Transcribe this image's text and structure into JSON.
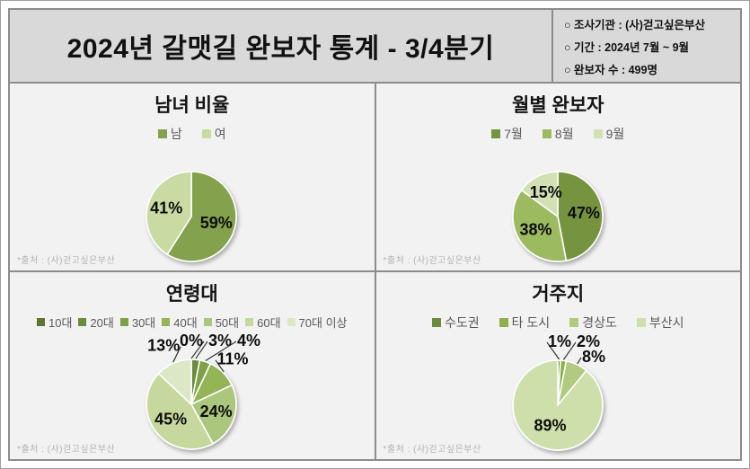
{
  "header": {
    "title": "2024년 갈맷길 완보자 통계 - 3/4분기",
    "info_items": [
      "○ 조사기관 : (사)걷고싶은부산",
      "○ 기간 : 2024년 7월 ~ 9월",
      "○ 완보자 수 : 499명"
    ]
  },
  "source_note": "*출처 : (사)걷고싶은부산",
  "palette": {
    "header_bg": "#d9d9d9",
    "panel_bg": "#f2f2f2",
    "border": "#8c8c8c",
    "label_text": "#0d0d0d",
    "legend_text": "#595959",
    "source_text": "#b3b3b3"
  },
  "chart_data": [
    {
      "type": "pie",
      "title": "남녀 비율",
      "labels": [
        "남",
        "여"
      ],
      "values": [
        59,
        41
      ],
      "unit": "%",
      "colors": [
        "#84A24E",
        "#C9DBA3"
      ],
      "legend_position": "top",
      "start_angle": 0,
      "direction": "clockwise"
    },
    {
      "type": "pie",
      "title": "월별 완보자",
      "labels": [
        "7월",
        "8월",
        "9월"
      ],
      "values": [
        47,
        38,
        15
      ],
      "unit": "%",
      "colors": [
        "#76943F",
        "#9CBA60",
        "#D3E0B3"
      ],
      "legend_position": "top",
      "start_angle": 0,
      "direction": "clockwise"
    },
    {
      "type": "pie",
      "title": "연령대",
      "labels": [
        "10대",
        "20대",
        "30대",
        "40대",
        "50대",
        "60대",
        "70대 이상"
      ],
      "values": [
        0,
        3,
        4,
        11,
        24,
        45,
        13
      ],
      "unit": "%",
      "colors": [
        "#5D7731",
        "#6D8B3D",
        "#7FA049",
        "#94B457",
        "#ABC67D",
        "#C7D89E",
        "#DCE7C6"
      ],
      "legend_position": "top",
      "start_angle": 0,
      "direction": "clockwise"
    },
    {
      "type": "pie",
      "title": "거주지",
      "labels": [
        "수도권",
        "타 도시",
        "경상도",
        "부산시"
      ],
      "values": [
        1,
        2,
        8,
        89
      ],
      "unit": "%",
      "colors": [
        "#6D8B3D",
        "#8FAF4E",
        "#B1CA80",
        "#CEDFAC"
      ],
      "legend_position": "top",
      "start_angle": 0,
      "direction": "clockwise"
    }
  ]
}
